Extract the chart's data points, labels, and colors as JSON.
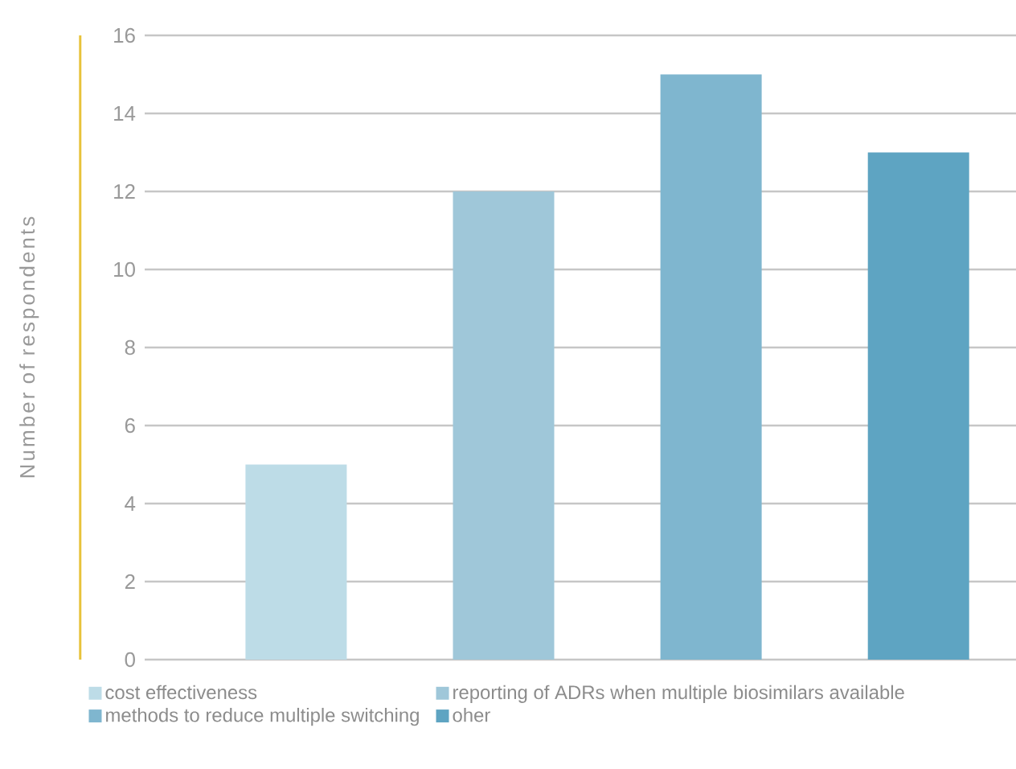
{
  "chart_data": {
    "type": "bar",
    "ylabel": "Number of respondents",
    "categories": [
      null,
      null,
      null,
      null
    ],
    "series": [
      {
        "name": "cost effectiveness",
        "color": "#bddce7",
        "values": [
          5,
          null,
          null,
          null
        ]
      },
      {
        "name": "reporting of ADRs when multiple biosimilars available",
        "color": "#9fc7d9",
        "values": [
          null,
          12,
          null,
          null
        ]
      },
      {
        "name": "methods to reduce multiple switching",
        "color": "#7fb6cf",
        "values": [
          null,
          null,
          15,
          null
        ]
      },
      {
        "name": "oher",
        "color": "#5ea4c2",
        "values": [
          null,
          null,
          null,
          13
        ]
      }
    ],
    "ylim": [
      0,
      16
    ],
    "yticks": [
      0,
      2,
      4,
      6,
      8,
      10,
      12,
      14,
      16
    ],
    "grid": "y",
    "legend": "bottom"
  }
}
